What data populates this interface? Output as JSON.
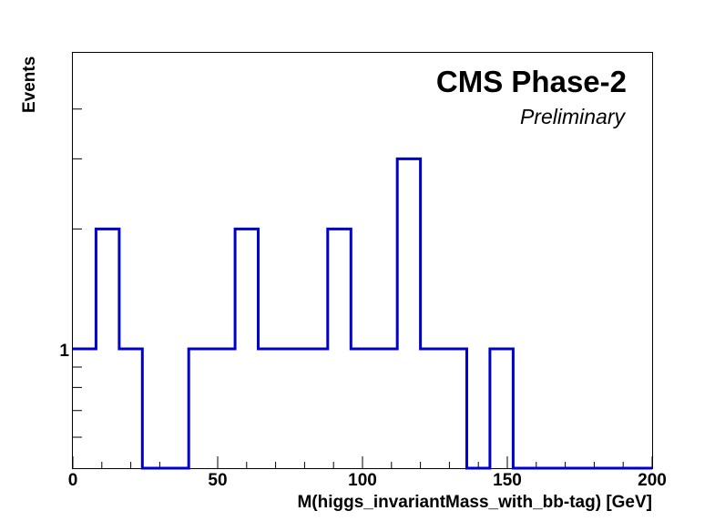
{
  "chart_data": {
    "type": "histogram",
    "title": "CMS Phase-2",
    "subtitle": "Preliminary",
    "xlabel": "M(higgs_invariantMass_with_bb-tag) [GeV]",
    "ylabel": "Events",
    "xlim": [
      0,
      200
    ],
    "y_scale": "log",
    "xticks": [
      0,
      50,
      100,
      150,
      200
    ],
    "xtick_labels": [
      "0",
      "50",
      "100",
      "150",
      "200"
    ],
    "ytick_labels": [
      "1"
    ],
    "bin_edges": [
      0,
      8,
      16,
      24,
      32,
      40,
      48,
      56,
      64,
      72,
      80,
      88,
      96,
      104,
      112,
      120,
      128,
      136,
      144,
      152,
      160,
      168,
      176,
      184,
      192,
      200
    ],
    "values": [
      1,
      2,
      1,
      0,
      0,
      1,
      1,
      2,
      1,
      1,
      1,
      2,
      1,
      1,
      3,
      1,
      1,
      0,
      1,
      0,
      0,
      0,
      0,
      0,
      0
    ],
    "line_color": "#0000cc",
    "grid": false
  }
}
